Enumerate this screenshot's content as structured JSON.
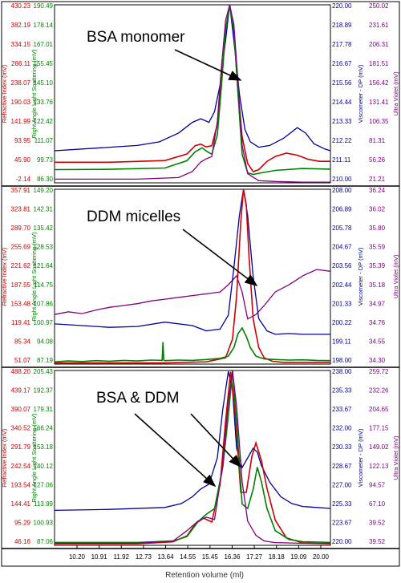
{
  "figure": {
    "xlabel": "Retention volume (ml)",
    "x_ticks": [
      "10.20",
      "10.91",
      "11.92",
      "12.73",
      "13.64",
      "14.55",
      "15.45",
      "16.36",
      "17.27",
      "18.18",
      "19.09",
      "20.00"
    ],
    "axis_titles": {
      "ri": "Refractive Index (mV)",
      "ls": "Right Angle Light Scattering (mV)",
      "visc": "Viscometer - DP (mV)",
      "uv": "Ultra Violet (mV)"
    },
    "colors": {
      "ri": "#cc0000",
      "ls": "#008000",
      "visc": "#000099",
      "uv": "#800080"
    }
  },
  "chart_data": [
    {
      "type": "line",
      "annotation": "BSA monomer",
      "xlim": [
        10.0,
        20.0
      ],
      "axes": {
        "ri": {
          "range": [
            -2.14,
            430.23
          ],
          "ticks": [
            "430.23",
            "382.19",
            "334.15",
            "286.11",
            "238.07",
            "190.03",
            "141.99",
            "93.95",
            "45.90",
            "-2.14"
          ]
        },
        "ls": {
          "range": [
            80.3,
            190.49
          ],
          "ticks": [
            "190.49",
            "178.14",
            "167.01",
            "155.45",
            "145.10",
            "133.76",
            "122.42",
            "111.07",
            "99.73",
            "86.30"
          ]
        },
        "visc": {
          "range": [
            210.0,
            220.0
          ],
          "ticks": [
            "220.00",
            "218.89",
            "217.78",
            "216.67",
            "215.56",
            "214.44",
            "213.33",
            "212.22",
            "211.11",
            "210.00"
          ]
        },
        "uv": {
          "range": [
            21.21,
            250.02
          ],
          "ticks": [
            "250.02",
            "231.61",
            "206.31",
            "181.51",
            "156.42",
            "131.41",
            "106.35",
            "81.31",
            "56.26",
            "21.21"
          ]
        }
      },
      "series": [
        {
          "key": "visc",
          "x": [
            10.0,
            11.0,
            12.0,
            13.0,
            13.8,
            14.5,
            15.0,
            15.3,
            15.6,
            15.8,
            16.0,
            16.2,
            16.35,
            16.5,
            16.7,
            16.9,
            17.1,
            17.4,
            17.8,
            18.3,
            18.8,
            19.1,
            19.4,
            19.8,
            20.0
          ],
          "y": [
            211.8,
            211.9,
            212.0,
            212.1,
            212.3,
            212.8,
            213.4,
            213.6,
            213.4,
            214.0,
            215.5,
            218.0,
            220.0,
            218.0,
            215.0,
            213.0,
            212.3,
            212.0,
            212.1,
            212.5,
            213.1,
            212.8,
            212.2,
            211.9,
            211.8
          ]
        },
        {
          "key": "ri",
          "x": [
            10.0,
            12.0,
            14.0,
            14.8,
            15.1,
            15.3,
            15.5,
            15.7,
            15.9,
            16.05,
            16.2,
            16.35,
            16.5,
            16.65,
            16.8,
            17.0,
            17.2,
            17.4,
            17.7,
            18.0,
            18.4,
            18.8,
            19.2,
            19.6,
            20.0
          ],
          "y": [
            48,
            48,
            52,
            68,
            88,
            92,
            85,
            88,
            140,
            240,
            370,
            430,
            370,
            220,
            110,
            45,
            25,
            30,
            50,
            62,
            70,
            65,
            55,
            50,
            50
          ]
        },
        {
          "key": "ls",
          "x": [
            10.0,
            12.0,
            14.0,
            14.8,
            15.1,
            15.35,
            15.5,
            15.7,
            15.9,
            16.05,
            16.2,
            16.35,
            16.5,
            16.65,
            16.8,
            17.0,
            17.2,
            17.5,
            18.0,
            19.0,
            20.0
          ],
          "y": [
            88.5,
            88.7,
            89.5,
            94,
            99.5,
            102,
            100,
            98,
            110,
            140,
            175,
            190,
            175,
            135,
            98,
            86.5,
            85.5,
            86.5,
            88,
            89.2,
            88.8
          ]
        },
        {
          "key": "uv",
          "x": [
            10.0,
            13.0,
            14.5,
            15.0,
            15.3,
            15.5,
            15.7,
            15.9,
            16.05,
            16.2,
            16.35,
            16.5,
            16.65,
            16.8,
            17.0,
            17.4,
            18.0,
            19.0,
            20.0
          ],
          "y": [
            26,
            26,
            28,
            36,
            48,
            52,
            55,
            100,
            170,
            230,
            250,
            225,
            150,
            70,
            33,
            24,
            23,
            22,
            22
          ]
        }
      ]
    },
    {
      "type": "line",
      "annotation": "DDM micelles",
      "xlim": [
        10.0,
        20.0
      ],
      "axes": {
        "ri": {
          "range": [
            51.07,
            357.91
          ],
          "ticks": [
            "357.91",
            "323.81",
            "289.70",
            "255.69",
            "221.62",
            "187.55",
            "153.48",
            "119.41",
            "85.34",
            "51.07"
          ]
        },
        "ls": {
          "range": [
            87.19,
            149.2
          ],
          "ticks": [
            "149.20",
            "142.31",
            "135.42",
            "128.53",
            "121.64",
            "114.75",
            "107.86",
            "100.97",
            "94.08",
            "87.19"
          ]
        },
        "visc": {
          "range": [
            198.0,
            208.0
          ],
          "ticks": [
            "208.00",
            "206.89",
            "205.78",
            "204.67",
            "203.56",
            "202.44",
            "201.33",
            "200.22",
            "199.11",
            "198.00"
          ]
        },
        "uv": {
          "range": [
            34.3,
            36.24
          ],
          "ticks": [
            "36.24",
            "36.02",
            "35.80",
            "35.59",
            "35.39",
            "35.18",
            "34.97",
            "34.76",
            "34.55",
            "34.30"
          ]
        }
      },
      "series": [
        {
          "key": "uv",
          "x": [
            10.0,
            10.5,
            11.0,
            11.5,
            12.0,
            12.5,
            13.0,
            13.5,
            14.0,
            14.5,
            15.0,
            15.5,
            16.0,
            16.3,
            16.6,
            16.8,
            17.0,
            17.3,
            17.6,
            18.0,
            18.5,
            19.0,
            19.5,
            20.0
          ],
          "y": [
            34.85,
            34.88,
            34.86,
            34.9,
            34.93,
            34.95,
            34.97,
            35.0,
            35.02,
            35.04,
            35.06,
            35.08,
            35.1,
            35.18,
            35.28,
            35.1,
            34.8,
            34.85,
            34.95,
            35.1,
            35.18,
            35.28,
            35.35,
            35.33
          ]
        },
        {
          "key": "visc",
          "x": [
            10.0,
            11.0,
            12.0,
            13.0,
            14.0,
            15.0,
            15.5,
            16.0,
            16.3,
            16.5,
            16.7,
            16.85,
            17.0,
            17.2,
            17.4,
            17.7,
            18.0,
            18.5,
            19.0,
            19.5,
            20.0
          ],
          "y": [
            200.3,
            200.2,
            200.1,
            200.15,
            200.4,
            200.2,
            199.9,
            200.0,
            200.8,
            203.5,
            206.5,
            208.0,
            206.5,
            203.0,
            200.6,
            199.9,
            199.7,
            199.75,
            199.7,
            199.7,
            199.7
          ]
        },
        {
          "key": "ri",
          "x": [
            10.0,
            14.0,
            15.5,
            16.2,
            16.45,
            16.6,
            16.75,
            16.85,
            16.95,
            17.05,
            17.2,
            17.4,
            17.6,
            17.9,
            18.3,
            19.0,
            20.0
          ],
          "y": [
            53,
            53,
            55,
            62,
            95,
            170,
            300,
            358,
            330,
            240,
            130,
            80,
            62,
            56,
            54,
            54,
            54
          ]
        },
        {
          "key": "ls",
          "x": [
            10.0,
            10.5,
            11.0,
            11.5,
            12.0,
            12.5,
            13.0,
            13.5,
            13.9,
            13.93,
            13.96,
            14.0,
            14.5,
            15.0,
            15.5,
            16.0,
            16.3,
            16.5,
            16.65,
            16.8,
            16.95,
            17.1,
            17.3,
            17.6,
            18.0,
            18.5,
            19.0,
            19.5,
            20.0
          ],
          "y": [
            88,
            88.3,
            88.1,
            88.4,
            88.2,
            88.5,
            88.3,
            88.6,
            88.5,
            95,
            88.6,
            88.4,
            88.6,
            88.5,
            88.8,
            89.2,
            90,
            93,
            98,
            100,
            97,
            93,
            90,
            89,
            88.8,
            88.6,
            88.7,
            88.5,
            88.4
          ]
        }
      ]
    },
    {
      "type": "line",
      "annotation": "BSA & DDM",
      "xlim": [
        10.0,
        20.0
      ],
      "axes": {
        "ri": {
          "range": [
            46.16,
            488.2
          ],
          "ticks": [
            "488.20",
            "439.17",
            "390.07",
            "340.52",
            "291.79",
            "242.54",
            "193.54",
            "144.41",
            "95.29",
            "46.16"
          ]
        },
        "ls": {
          "range": [
            87.06,
            205.43
          ],
          "ticks": [
            "205.43",
            "192.37",
            "179.31",
            "166.24",
            "153.18",
            "140.12",
            "127.06",
            "113.99",
            "100.93",
            "87.06"
          ]
        },
        "visc": {
          "range": [
            220.0,
            238.0
          ],
          "ticks": [
            "238.00",
            "235.33",
            "233.67",
            "232.00",
            "230.33",
            "228.67",
            "227.00",
            "225.33",
            "223.67",
            "220.00"
          ]
        },
        "uv": {
          "range": [
            39.52,
            259.72
          ],
          "ticks": [
            "259.72",
            "232.26",
            "204.65",
            "177.15",
            "149.02",
            "122.13",
            "94.57",
            "67.10",
            "39.52",
            "39.52"
          ]
        }
      },
      "series": [
        {
          "key": "visc",
          "x": [
            10.0,
            12.0,
            14.0,
            14.6,
            15.0,
            15.3,
            15.6,
            15.9,
            16.1,
            16.3,
            16.45,
            16.6,
            16.8,
            17.0,
            17.2,
            17.35,
            17.5,
            17.8,
            18.2,
            18.6,
            19.0,
            19.5,
            20.0
          ],
          "y": [
            223.6,
            223.7,
            223.9,
            224.3,
            225.0,
            225.8,
            226.3,
            229.0,
            234.0,
            237.9,
            236.0,
            230.0,
            228.0,
            229.0,
            230.0,
            229.6,
            228.2,
            226.5,
            225.0,
            224.3,
            224.0,
            223.9,
            223.8
          ]
        },
        {
          "key": "ri",
          "x": [
            10.0,
            13.0,
            14.3,
            14.8,
            15.1,
            15.4,
            15.7,
            16.0,
            16.2,
            16.38,
            16.55,
            16.75,
            16.95,
            17.15,
            17.3,
            17.5,
            17.7,
            18.0,
            18.4,
            19.0,
            20.0
          ],
          "y": [
            50,
            50,
            55,
            70,
            100,
            115,
            105,
            200,
            360,
            485,
            380,
            180,
            180,
            270,
            305,
            260,
            190,
            110,
            65,
            52,
            50
          ]
        },
        {
          "key": "ls",
          "x": [
            10.0,
            13.0,
            14.3,
            14.8,
            15.2,
            15.5,
            15.8,
            16.1,
            16.3,
            16.45,
            16.6,
            16.8,
            17.0,
            17.2,
            17.35,
            17.5,
            17.7,
            18.0,
            18.5,
            19.0,
            20.0
          ],
          "y": [
            89,
            89,
            90,
            93,
            103,
            108,
            112,
            140,
            175,
            205,
            170,
            115,
            112,
            125,
            140,
            130,
            112,
            97,
            91,
            89.5,
            89
          ]
        },
        {
          "key": "uv",
          "x": [
            10.0,
            13.0,
            14.3,
            14.8,
            15.2,
            15.5,
            15.8,
            16.1,
            16.3,
            16.45,
            16.6,
            16.8,
            17.0,
            17.3,
            17.6,
            18.0,
            19.0,
            20.0
          ],
          "y": [
            42,
            42,
            45,
            58,
            70,
            75,
            72,
            140,
            220,
            259,
            215,
            120,
            70,
            52,
            45,
            43,
            42,
            42
          ]
        }
      ]
    }
  ]
}
